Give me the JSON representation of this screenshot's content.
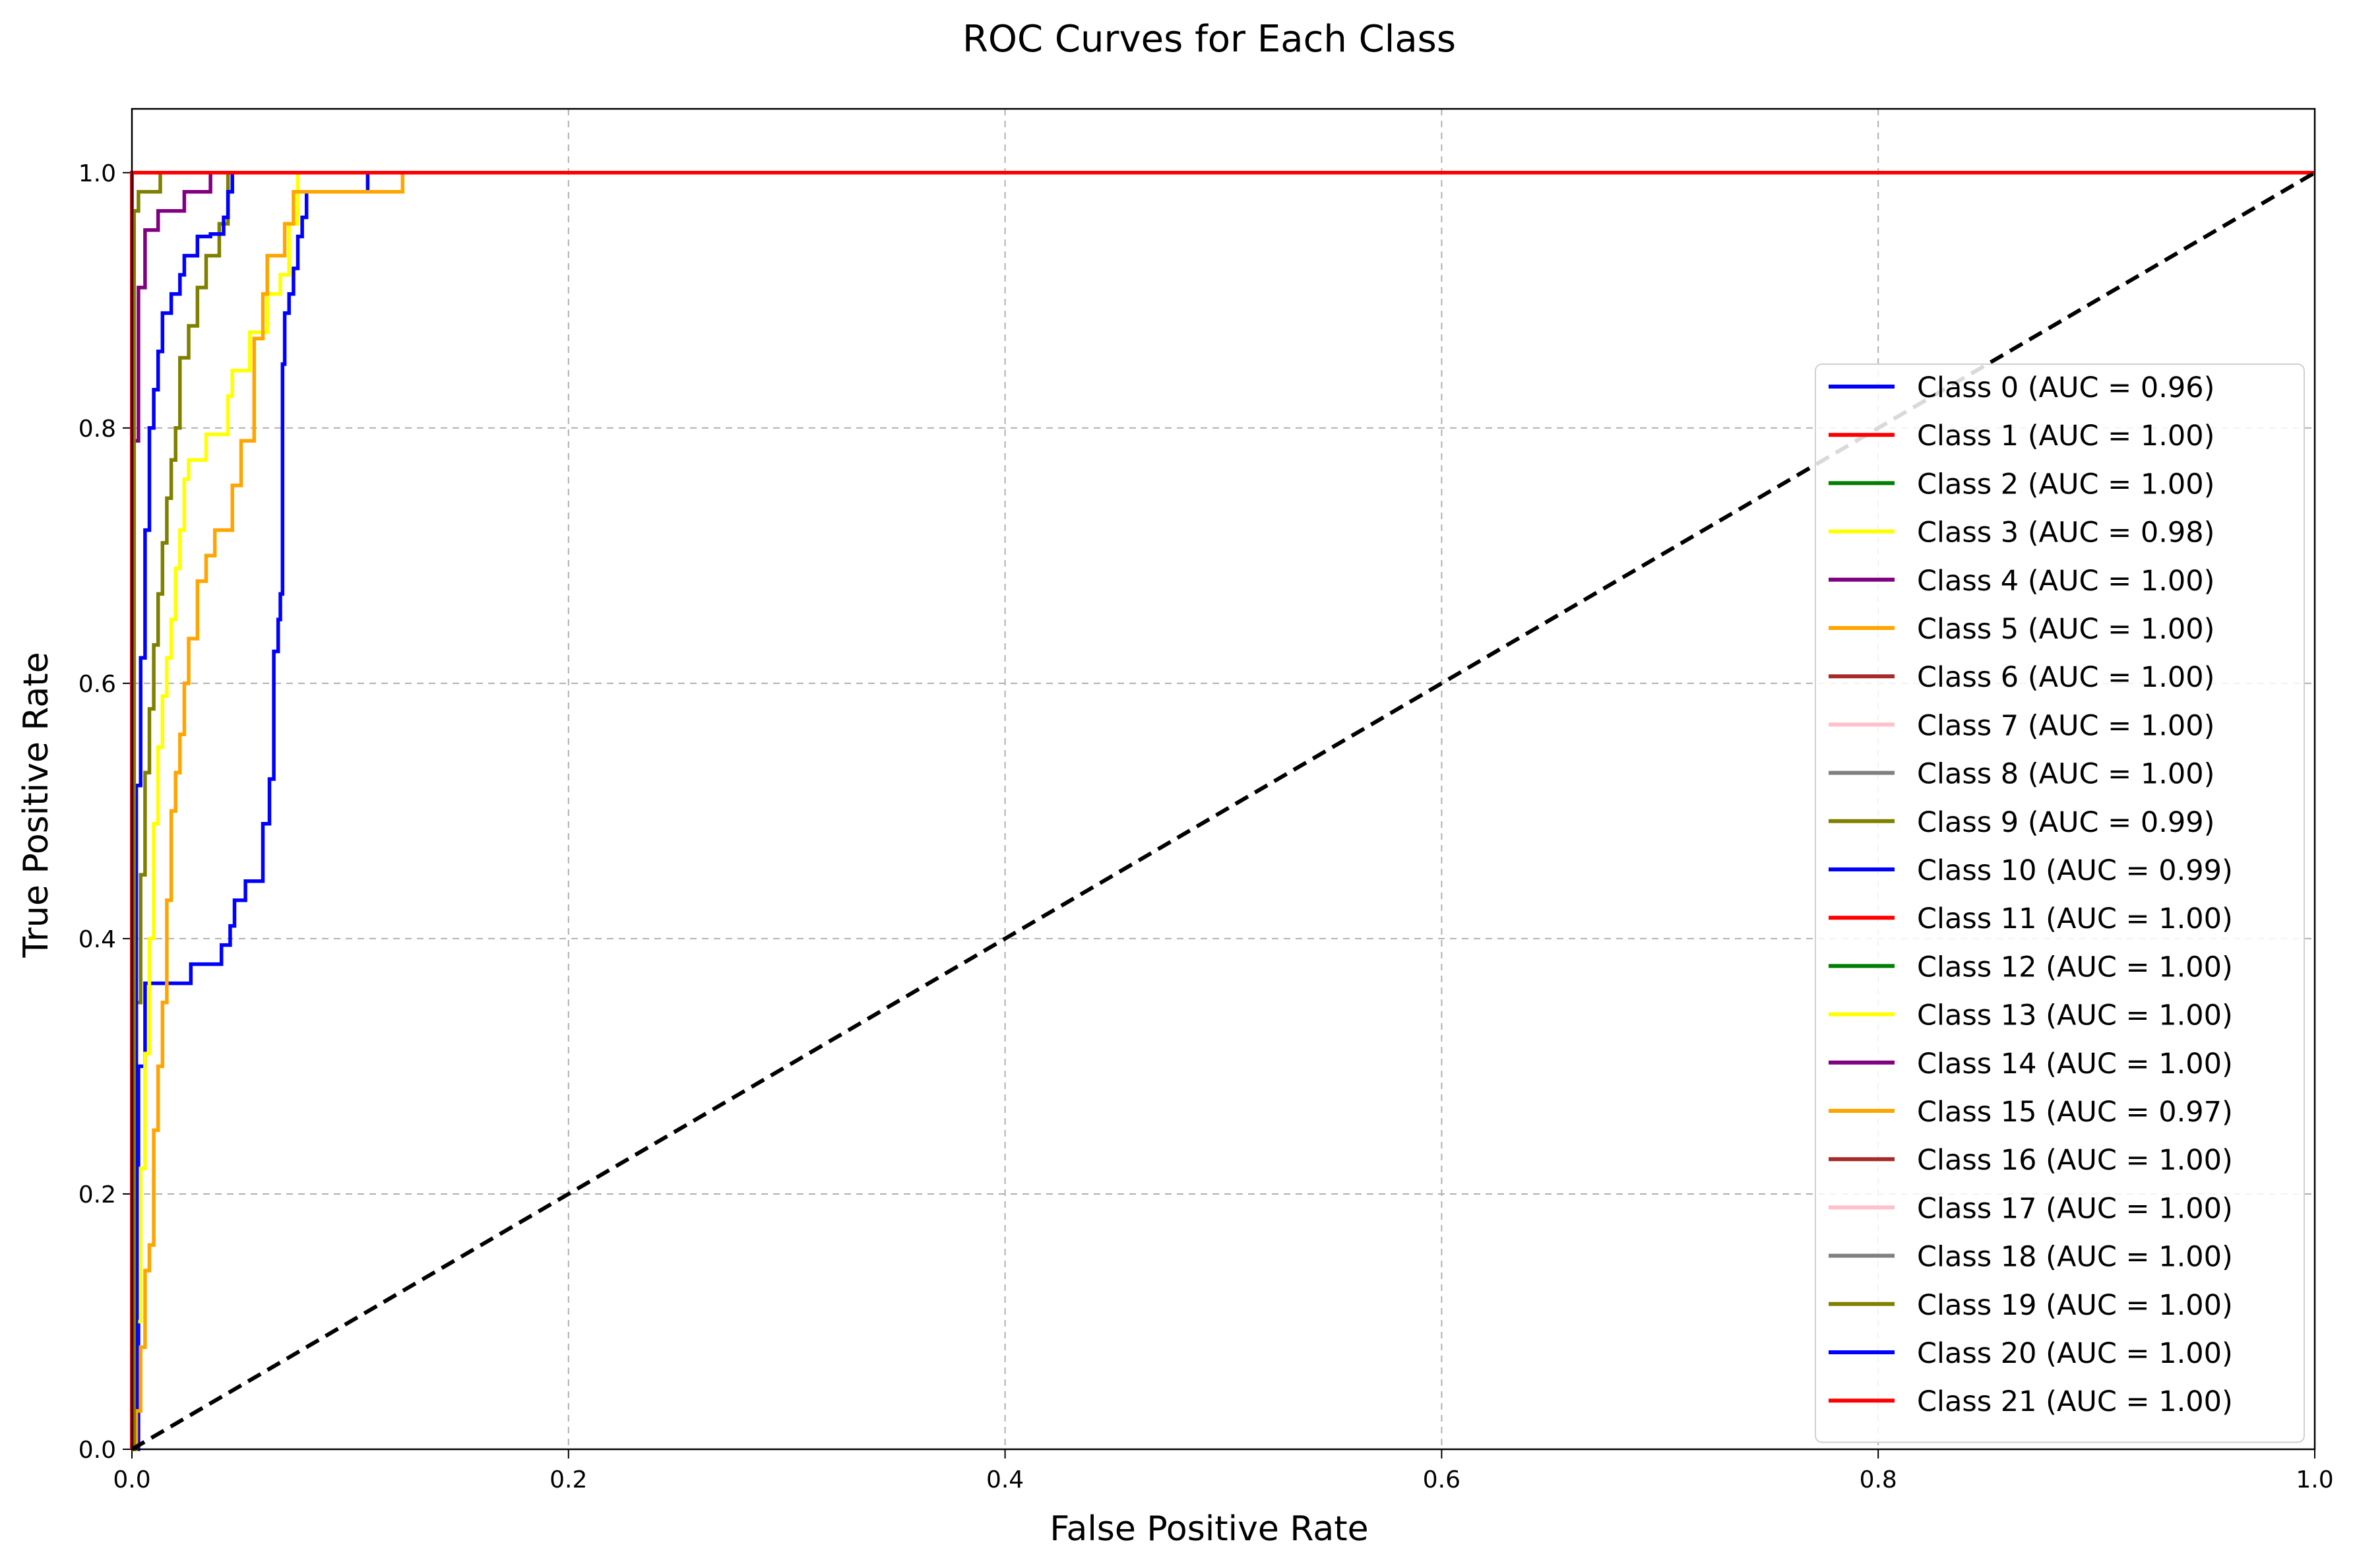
{
  "chart_data": {
    "type": "line",
    "title": "ROC Curves for Each Class",
    "xlabel": "False Positive Rate",
    "ylabel": "True Positive Rate",
    "xlim": [
      0.0,
      1.0
    ],
    "ylim": [
      0.0,
      1.05
    ],
    "x_ticks": [
      "0.0",
      "0.2",
      "0.4",
      "0.6",
      "0.8",
      "1.0"
    ],
    "y_ticks": [
      "0.0",
      "0.2",
      "0.4",
      "0.6",
      "0.8",
      "1.0"
    ],
    "grid": true,
    "legend_position": "center-right",
    "reference_line": {
      "x": [
        0,
        1
      ],
      "y": [
        0,
        1
      ],
      "color": "#000000",
      "style": "dashed"
    },
    "series": [
      {
        "name": "Class 0 (AUC = 0.96)",
        "color": "#0000ff",
        "x": [
          0,
          0.003,
          0.003,
          0.006,
          0.006,
          0.027,
          0.027,
          0.041,
          0.041,
          0.045,
          0.045,
          0.047,
          0.047,
          0.052,
          0.052,
          0.06,
          0.06,
          0.063,
          0.063,
          0.065,
          0.065,
          0.067,
          0.067,
          0.068,
          0.068,
          0.069,
          0.069,
          0.07,
          0.07,
          0.072,
          0.072,
          0.074,
          0.074,
          0.076,
          0.076,
          0.078,
          0.078,
          0.08,
          0.08,
          0.108,
          0.108,
          1.0
        ],
        "y": [
          0,
          0,
          0.3,
          0.3,
          0.365,
          0.365,
          0.38,
          0.38,
          0.395,
          0.395,
          0.41,
          0.41,
          0.43,
          0.43,
          0.445,
          0.445,
          0.49,
          0.49,
          0.525,
          0.525,
          0.625,
          0.625,
          0.65,
          0.65,
          0.67,
          0.67,
          0.85,
          0.85,
          0.89,
          0.89,
          0.905,
          0.905,
          0.925,
          0.925,
          0.95,
          0.95,
          0.965,
          0.965,
          0.985,
          0.985,
          1.0,
          1.0
        ]
      },
      {
        "name": "Class 1 (AUC = 1.00)",
        "color": "#ff0000",
        "x": [
          0,
          0,
          1.0
        ],
        "y": [
          0,
          1.0,
          1.0
        ]
      },
      {
        "name": "Class 2 (AUC = 1.00)",
        "color": "#008000",
        "x": [
          0,
          0,
          1.0
        ],
        "y": [
          0,
          1.0,
          1.0
        ]
      },
      {
        "name": "Class 3 (AUC = 0.98)",
        "color": "#ffff00",
        "x": [
          0,
          0.002,
          0.002,
          0.004,
          0.004,
          0.006,
          0.006,
          0.008,
          0.008,
          0.01,
          0.01,
          0.012,
          0.012,
          0.014,
          0.014,
          0.016,
          0.016,
          0.018,
          0.018,
          0.02,
          0.02,
          0.022,
          0.022,
          0.024,
          0.024,
          0.026,
          0.026,
          0.034,
          0.034,
          0.044,
          0.044,
          0.046,
          0.046,
          0.054,
          0.054,
          0.062,
          0.062,
          0.068,
          0.068,
          0.072,
          0.072,
          0.076,
          0.076,
          1.0
        ],
        "y": [
          0,
          0,
          0.1,
          0.1,
          0.22,
          0.22,
          0.31,
          0.31,
          0.4,
          0.4,
          0.49,
          0.49,
          0.55,
          0.55,
          0.59,
          0.59,
          0.62,
          0.62,
          0.65,
          0.65,
          0.69,
          0.69,
          0.72,
          0.72,
          0.76,
          0.76,
          0.775,
          0.775,
          0.795,
          0.795,
          0.825,
          0.825,
          0.845,
          0.845,
          0.875,
          0.875,
          0.905,
          0.905,
          0.92,
          0.92,
          0.96,
          0.96,
          1.0,
          1.0
        ]
      },
      {
        "name": "Class 4 (AUC = 1.00)",
        "color": "#800080",
        "x": [
          0,
          0.001,
          0.001,
          0.003,
          0.003,
          0.006,
          0.006,
          0.012,
          0.012,
          0.024,
          0.024,
          0.036,
          0.036,
          1.0
        ],
        "y": [
          0,
          0,
          0.79,
          0.79,
          0.91,
          0.91,
          0.955,
          0.955,
          0.97,
          0.97,
          0.985,
          0.985,
          1.0,
          1.0
        ]
      },
      {
        "name": "Class 5 (AUC = 1.00)",
        "color": "#ffa500",
        "x": [
          0,
          0,
          1.0
        ],
        "y": [
          0,
          1.0,
          1.0
        ]
      },
      {
        "name": "Class 6 (AUC = 1.00)",
        "color": "#a52a2a",
        "x": [
          0,
          0,
          1.0
        ],
        "y": [
          0,
          1.0,
          1.0
        ]
      },
      {
        "name": "Class 7 (AUC = 1.00)",
        "color": "#ffc0cb",
        "x": [
          0,
          0,
          1.0
        ],
        "y": [
          0,
          1.0,
          1.0
        ]
      },
      {
        "name": "Class 8 (AUC = 1.00)",
        "color": "#808080",
        "x": [
          0,
          0,
          1.0
        ],
        "y": [
          0,
          1.0,
          1.0
        ]
      },
      {
        "name": "Class 9 (AUC = 0.99)",
        "color": "#808000",
        "x": [
          0,
          0.002,
          0.002,
          0.004,
          0.004,
          0.006,
          0.006,
          0.008,
          0.008,
          0.01,
          0.01,
          0.012,
          0.012,
          0.014,
          0.014,
          0.016,
          0.016,
          0.018,
          0.018,
          0.02,
          0.02,
          0.022,
          0.022,
          0.026,
          0.026,
          0.03,
          0.03,
          0.034,
          0.034,
          0.04,
          0.04,
          0.044,
          0.044,
          1.0
        ],
        "y": [
          0,
          0,
          0.35,
          0.35,
          0.45,
          0.45,
          0.53,
          0.53,
          0.58,
          0.58,
          0.63,
          0.63,
          0.67,
          0.67,
          0.71,
          0.71,
          0.745,
          0.745,
          0.775,
          0.775,
          0.8,
          0.8,
          0.855,
          0.855,
          0.88,
          0.88,
          0.91,
          0.91,
          0.935,
          0.935,
          0.96,
          0.96,
          1.0,
          1.0
        ]
      },
      {
        "name": "Class 10 (AUC = 0.99)",
        "color": "#0000ff",
        "x": [
          0,
          0.002,
          0.002,
          0.004,
          0.004,
          0.006,
          0.006,
          0.008,
          0.008,
          0.01,
          0.01,
          0.012,
          0.012,
          0.014,
          0.014,
          0.018,
          0.018,
          0.022,
          0.022,
          0.024,
          0.024,
          0.03,
          0.03,
          0.036,
          0.036,
          0.042,
          0.042,
          0.044,
          0.044,
          0.046,
          0.046,
          1.0
        ],
        "y": [
          0,
          0,
          0.52,
          0.52,
          0.62,
          0.62,
          0.72,
          0.72,
          0.8,
          0.8,
          0.83,
          0.83,
          0.86,
          0.86,
          0.89,
          0.89,
          0.905,
          0.905,
          0.92,
          0.92,
          0.935,
          0.935,
          0.95,
          0.95,
          0.952,
          0.952,
          0.965,
          0.965,
          0.985,
          0.985,
          1.0,
          1.0
        ]
      },
      {
        "name": "Class 11 (AUC = 1.00)",
        "color": "#ff0000",
        "x": [
          0,
          0,
          1.0
        ],
        "y": [
          0,
          1.0,
          1.0
        ]
      },
      {
        "name": "Class 12 (AUC = 1.00)",
        "color": "#008000",
        "x": [
          0,
          0,
          1.0
        ],
        "y": [
          0,
          1.0,
          1.0
        ]
      },
      {
        "name": "Class 13 (AUC = 1.00)",
        "color": "#ffff00",
        "x": [
          0,
          0,
          1.0
        ],
        "y": [
          0,
          1.0,
          1.0
        ]
      },
      {
        "name": "Class 14 (AUC = 1.00)",
        "color": "#800080",
        "x": [
          0,
          0,
          1.0
        ],
        "y": [
          0,
          1.0,
          1.0
        ]
      },
      {
        "name": "Class 15 (AUC = 0.97)",
        "color": "#ffa500",
        "x": [
          0,
          0.002,
          0.002,
          0.004,
          0.004,
          0.006,
          0.006,
          0.008,
          0.008,
          0.01,
          0.01,
          0.012,
          0.012,
          0.014,
          0.014,
          0.016,
          0.016,
          0.018,
          0.018,
          0.02,
          0.02,
          0.022,
          0.022,
          0.024,
          0.024,
          0.026,
          0.026,
          0.03,
          0.03,
          0.034,
          0.034,
          0.036,
          0.036,
          0.038,
          0.038,
          0.046,
          0.046,
          0.05,
          0.05,
          0.052,
          0.052,
          0.056,
          0.056,
          0.06,
          0.06,
          0.062,
          0.062,
          0.066,
          0.066,
          0.07,
          0.07,
          0.074,
          0.074,
          0.076,
          0.076,
          0.124,
          0.124,
          1.0
        ],
        "y": [
          0,
          0,
          0.03,
          0.03,
          0.08,
          0.08,
          0.14,
          0.14,
          0.16,
          0.16,
          0.25,
          0.25,
          0.3,
          0.3,
          0.35,
          0.35,
          0.43,
          0.43,
          0.5,
          0.5,
          0.53,
          0.53,
          0.56,
          0.56,
          0.6,
          0.6,
          0.635,
          0.635,
          0.68,
          0.68,
          0.7,
          0.7,
          0.7,
          0.7,
          0.72,
          0.72,
          0.755,
          0.755,
          0.79,
          0.79,
          0.79,
          0.79,
          0.87,
          0.87,
          0.905,
          0.905,
          0.935,
          0.935,
          0.935,
          0.935,
          0.96,
          0.96,
          0.985,
          0.985,
          0.985,
          0.985,
          1.0,
          1.0
        ]
      },
      {
        "name": "Class 16 (AUC = 1.00)",
        "color": "#a52a2a",
        "x": [
          0,
          0,
          1.0
        ],
        "y": [
          0,
          1.0,
          1.0
        ]
      },
      {
        "name": "Class 17 (AUC = 1.00)",
        "color": "#ffc0cb",
        "x": [
          0,
          0,
          1.0
        ],
        "y": [
          0,
          1.0,
          1.0
        ]
      },
      {
        "name": "Class 18 (AUC = 1.00)",
        "color": "#808080",
        "x": [
          0,
          0,
          1.0
        ],
        "y": [
          0,
          1.0,
          1.0
        ]
      },
      {
        "name": "Class 19 (AUC = 1.00)",
        "color": "#808000",
        "x": [
          0,
          0.001,
          0.001,
          0.003,
          0.003,
          0.013,
          0.013,
          1.0
        ],
        "y": [
          0,
          0,
          0.97,
          0.97,
          0.985,
          0.985,
          1.0,
          1.0
        ]
      },
      {
        "name": "Class 20 (AUC = 1.00)",
        "color": "#0000ff",
        "x": [
          0,
          0,
          1.0
        ],
        "y": [
          0,
          1.0,
          1.0
        ]
      },
      {
        "name": "Class 21 (AUC = 1.00)",
        "color": "#ff0000",
        "x": [
          0,
          0,
          1.0
        ],
        "y": [
          0,
          1.0,
          1.0
        ]
      }
    ]
  }
}
